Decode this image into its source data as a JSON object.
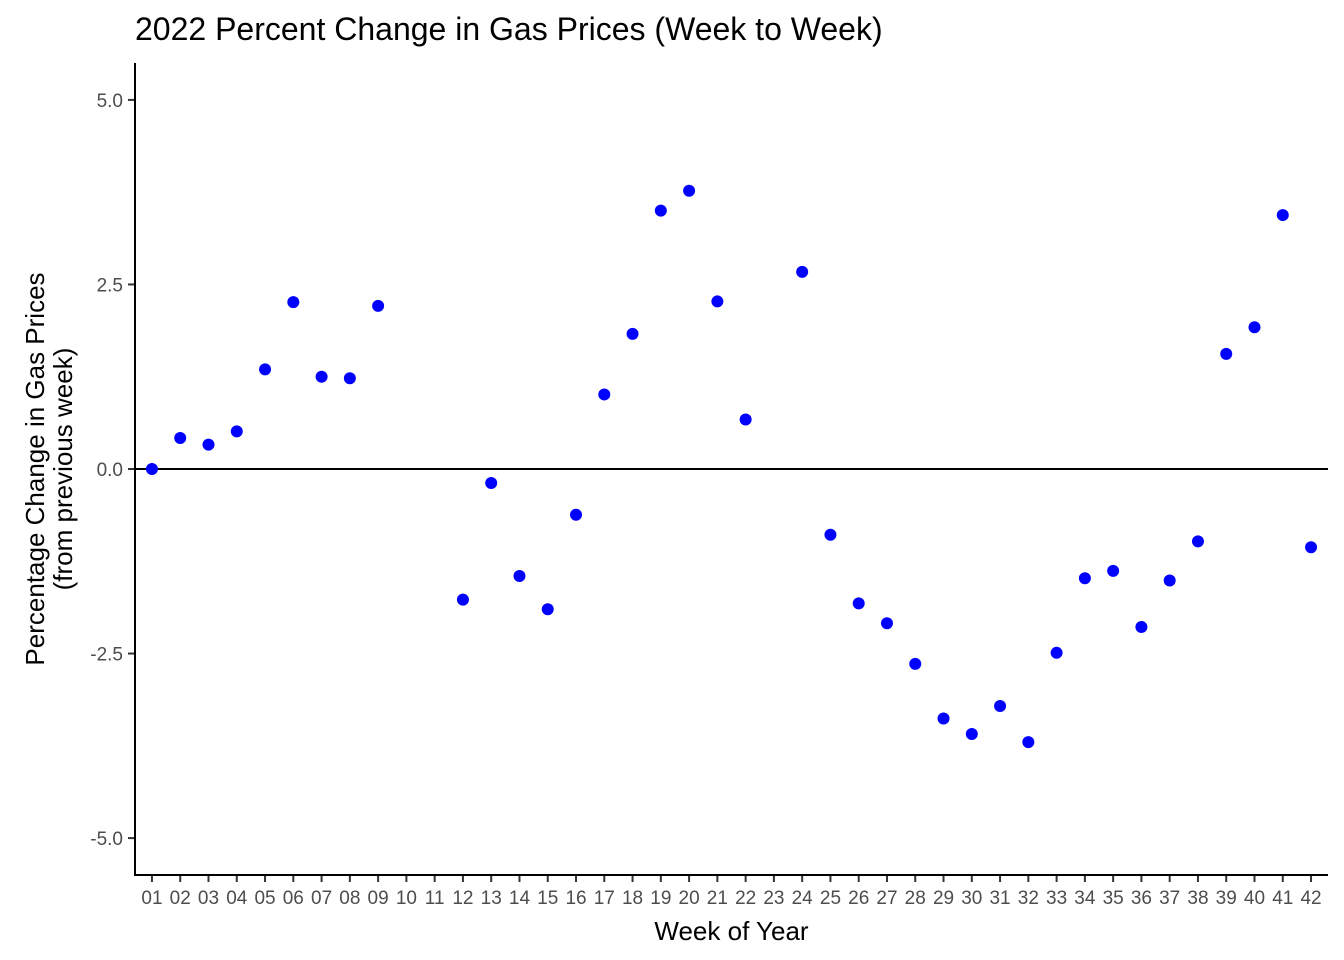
{
  "chart_data": {
    "type": "scatter",
    "title": "2022 Percent Change in Gas Prices (Week to Week)",
    "xlabel": "Week of Year",
    "ylabel_lines": [
      "Percentage Change in Gas Prices",
      "(from previous week)"
    ],
    "categories": [
      "01",
      "02",
      "03",
      "04",
      "05",
      "06",
      "07",
      "08",
      "09",
      "10",
      "11",
      "12",
      "13",
      "14",
      "15",
      "16",
      "17",
      "18",
      "19",
      "20",
      "21",
      "22",
      "23",
      "24",
      "25",
      "26",
      "27",
      "28",
      "29",
      "30",
      "31",
      "32",
      "33",
      "34",
      "35",
      "36",
      "37",
      "38",
      "39",
      "40",
      "41",
      "42"
    ],
    "yticks": [
      5.0,
      2.5,
      0.0,
      -2.5,
      -5.0
    ],
    "ytick_labels": [
      "5.0",
      "2.5",
      "0.0",
      "-2.5",
      "-5.0"
    ],
    "ylim": [
      -5.5,
      5.5
    ],
    "reference_line_y": 0.0,
    "grid": false,
    "point_color": "#0000ff",
    "points": [
      {
        "week": "01",
        "value": 0.0
      },
      {
        "week": "02",
        "value": 0.42
      },
      {
        "week": "03",
        "value": 0.33
      },
      {
        "week": "04",
        "value": 0.51
      },
      {
        "week": "05",
        "value": 1.35
      },
      {
        "week": "06",
        "value": 2.26
      },
      {
        "week": "07",
        "value": 1.25
      },
      {
        "week": "08",
        "value": 1.23
      },
      {
        "week": "09",
        "value": 2.21
      },
      {
        "week": "12",
        "value": -1.77
      },
      {
        "week": "13",
        "value": -0.19
      },
      {
        "week": "14",
        "value": -1.45
      },
      {
        "week": "15",
        "value": -1.9
      },
      {
        "week": "16",
        "value": -0.62
      },
      {
        "week": "17",
        "value": 1.01
      },
      {
        "week": "18",
        "value": 1.83
      },
      {
        "week": "19",
        "value": 3.5
      },
      {
        "week": "20",
        "value": 3.77
      },
      {
        "week": "21",
        "value": 2.27
      },
      {
        "week": "22",
        "value": 0.67
      },
      {
        "week": "24",
        "value": 2.67
      },
      {
        "week": "25",
        "value": -0.89
      },
      {
        "week": "26",
        "value": -1.82
      },
      {
        "week": "27",
        "value": -2.09
      },
      {
        "week": "28",
        "value": -2.64
      },
      {
        "week": "29",
        "value": -3.38
      },
      {
        "week": "30",
        "value": -3.59
      },
      {
        "week": "31",
        "value": -3.21
      },
      {
        "week": "32",
        "value": -3.7
      },
      {
        "week": "33",
        "value": -2.49
      },
      {
        "week": "34",
        "value": -1.48
      },
      {
        "week": "35",
        "value": -1.38
      },
      {
        "week": "36",
        "value": -2.14
      },
      {
        "week": "37",
        "value": -1.51
      },
      {
        "week": "38",
        "value": -0.98
      },
      {
        "week": "39",
        "value": 1.56
      },
      {
        "week": "40",
        "value": 1.92
      },
      {
        "week": "41",
        "value": 3.44
      },
      {
        "week": "42",
        "value": -1.06
      }
    ]
  }
}
